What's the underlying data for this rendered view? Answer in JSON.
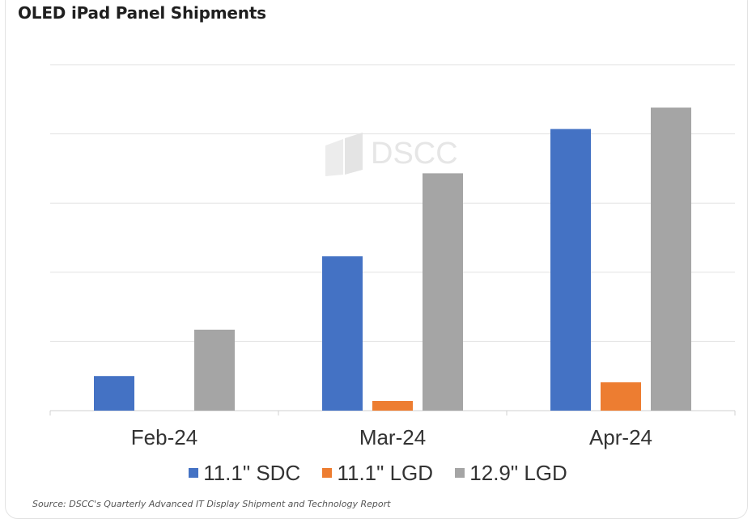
{
  "title": "OLED iPad Panel Shipments",
  "watermark": "DSCC",
  "source": "Source: DSCC's Quarterly Advanced IT Display Shipment and Technology Report",
  "chart_data": {
    "type": "bar",
    "title": "OLED iPad Panel Shipments",
    "xlabel": "",
    "ylabel": "",
    "categories": [
      "Feb-24",
      "Mar-24",
      "Apr-24"
    ],
    "series": [
      {
        "name": "11.1\" SDC",
        "color": "#4472c4",
        "values": [
          0.5,
          2.23,
          4.07
        ]
      },
      {
        "name": "11.1\" LGD",
        "color": "#ed7d31",
        "values": [
          0,
          0.14,
          0.41
        ]
      },
      {
        "name": "12.9\" LGD",
        "color": "#a5a5a5",
        "values": [
          1.17,
          3.43,
          4.38
        ]
      }
    ],
    "ylim": [
      0,
      5
    ],
    "y_tick_labels_shown": false,
    "grid": true,
    "legend_position": "bottom"
  }
}
